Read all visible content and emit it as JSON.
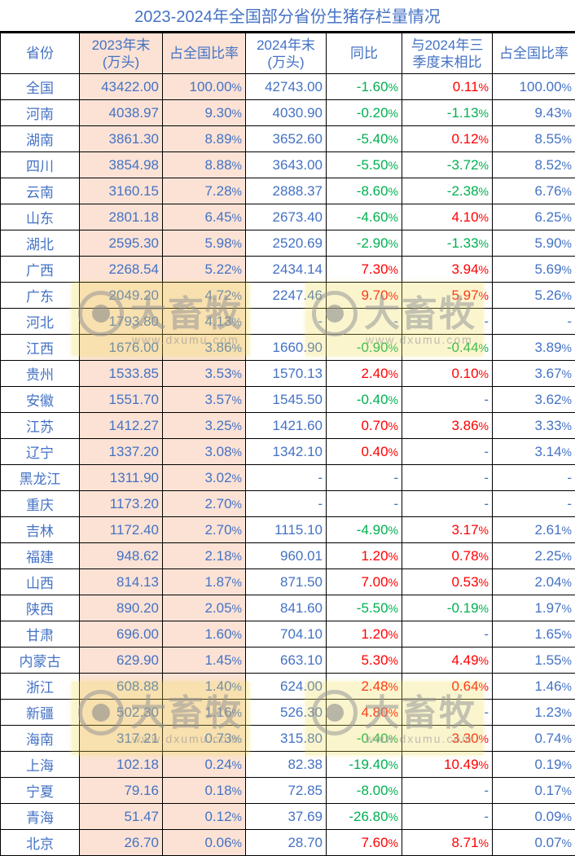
{
  "title": "2023-2024年全国部分省份生猪存栏量情况",
  "headers": {
    "province": "省份",
    "end2023": "2023年末(万头)",
    "share2023": "占全国比率",
    "end2024": "2024年末(万头)",
    "yoy": "同比",
    "vs_q3_2024": "与2024年三季度末相比",
    "share2024": "占全国比率"
  },
  "rows": [
    {
      "province": "全国",
      "end2023": "43422.00",
      "share2023": "100.00%",
      "end2024": "42743.00",
      "yoy": "-1.60%",
      "vs_q3": "0.11%",
      "share2024": "100.00%"
    },
    {
      "province": "河南",
      "end2023": "4038.97",
      "share2023": "9.30%",
      "end2024": "4030.90",
      "yoy": "-0.20%",
      "vs_q3": "-1.13%",
      "share2024": "9.43%"
    },
    {
      "province": "湖南",
      "end2023": "3861.30",
      "share2023": "8.89%",
      "end2024": "3652.60",
      "yoy": "-5.40%",
      "vs_q3": "0.12%",
      "share2024": "8.55%"
    },
    {
      "province": "四川",
      "end2023": "3854.98",
      "share2023": "8.88%",
      "end2024": "3643.00",
      "yoy": "-5.50%",
      "vs_q3": "-3.72%",
      "share2024": "8.52%"
    },
    {
      "province": "云南",
      "end2023": "3160.15",
      "share2023": "7.28%",
      "end2024": "2888.37",
      "yoy": "-8.60%",
      "vs_q3": "-2.38%",
      "share2024": "6.76%"
    },
    {
      "province": "山东",
      "end2023": "2801.18",
      "share2023": "6.45%",
      "end2024": "2673.40",
      "yoy": "-4.60%",
      "vs_q3": "4.10%",
      "share2024": "6.25%"
    },
    {
      "province": "湖北",
      "end2023": "2595.30",
      "share2023": "5.98%",
      "end2024": "2520.69",
      "yoy": "-2.90%",
      "vs_q3": "-1.33%",
      "share2024": "5.90%"
    },
    {
      "province": "广西",
      "end2023": "2268.54",
      "share2023": "5.22%",
      "end2024": "2434.14",
      "yoy": "7.30%",
      "vs_q3": "3.94%",
      "share2024": "5.69%"
    },
    {
      "province": "广东",
      "end2023": "2049.20",
      "share2023": "4.72%",
      "end2024": "2247.46",
      "yoy": "9.70%",
      "vs_q3": "5.97%",
      "share2024": "5.26%"
    },
    {
      "province": "河北",
      "end2023": "1793.80",
      "share2023": "4.13%",
      "end2024": "-",
      "yoy": "-",
      "vs_q3": "-",
      "share2024": "-"
    },
    {
      "province": "江西",
      "end2023": "1676.00",
      "share2023": "3.86%",
      "end2024": "1660.90",
      "yoy": "-0.90%",
      "vs_q3": "-0.44%",
      "share2024": "3.89%"
    },
    {
      "province": "贵州",
      "end2023": "1533.85",
      "share2023": "3.53%",
      "end2024": "1570.13",
      "yoy": "2.40%",
      "vs_q3": "0.10%",
      "share2024": "3.67%"
    },
    {
      "province": "安徽",
      "end2023": "1551.70",
      "share2023": "3.57%",
      "end2024": "1545.50",
      "yoy": "-0.40%",
      "vs_q3": "-",
      "share2024": "3.62%"
    },
    {
      "province": "江苏",
      "end2023": "1412.27",
      "share2023": "3.25%",
      "end2024": "1421.60",
      "yoy": "0.70%",
      "vs_q3": "3.86%",
      "share2024": "3.33%"
    },
    {
      "province": "辽宁",
      "end2023": "1337.20",
      "share2023": "3.08%",
      "end2024": "1342.10",
      "yoy": "0.40%",
      "vs_q3": "-",
      "share2024": "3.14%"
    },
    {
      "province": "黑龙江",
      "end2023": "1311.90",
      "share2023": "3.02%",
      "end2024": "-",
      "yoy": "-",
      "vs_q3": "-",
      "share2024": "-"
    },
    {
      "province": "重庆",
      "end2023": "1173.20",
      "share2023": "2.70%",
      "end2024": "-",
      "yoy": "-",
      "vs_q3": "-",
      "share2024": "-"
    },
    {
      "province": "吉林",
      "end2023": "1172.40",
      "share2023": "2.70%",
      "end2024": "1115.10",
      "yoy": "-4.90%",
      "vs_q3": "3.17%",
      "share2024": "2.61%"
    },
    {
      "province": "福建",
      "end2023": "948.62",
      "share2023": "2.18%",
      "end2024": "960.01",
      "yoy": "1.20%",
      "vs_q3": "0.78%",
      "share2024": "2.25%"
    },
    {
      "province": "山西",
      "end2023": "814.13",
      "share2023": "1.87%",
      "end2024": "871.50",
      "yoy": "7.00%",
      "vs_q3": "0.53%",
      "share2024": "2.04%"
    },
    {
      "province": "陕西",
      "end2023": "890.20",
      "share2023": "2.05%",
      "end2024": "841.60",
      "yoy": "-5.50%",
      "vs_q3": "-0.19%",
      "share2024": "1.97%"
    },
    {
      "province": "甘肃",
      "end2023": "696.00",
      "share2023": "1.60%",
      "end2024": "704.10",
      "yoy": "1.20%",
      "vs_q3": "-",
      "share2024": "1.65%"
    },
    {
      "province": "内蒙古",
      "end2023": "629.90",
      "share2023": "1.45%",
      "end2024": "663.10",
      "yoy": "5.30%",
      "vs_q3": "4.49%",
      "share2024": "1.55%"
    },
    {
      "province": "浙江",
      "end2023": "608.88",
      "share2023": "1.40%",
      "end2024": "624.00",
      "yoy": "2.48%",
      "vs_q3": "0.64%",
      "share2024": "1.46%"
    },
    {
      "province": "新疆",
      "end2023": "502.30",
      "share2023": "1.16%",
      "end2024": "526.30",
      "yoy": "4.80%",
      "vs_q3": "-",
      "share2024": "1.23%"
    },
    {
      "province": "海南",
      "end2023": "317.21",
      "share2023": "0.73%",
      "end2024": "315.80",
      "yoy": "-0.40%",
      "vs_q3": "3.30%",
      "share2024": "0.74%"
    },
    {
      "province": "上海",
      "end2023": "102.18",
      "share2023": "0.24%",
      "end2024": "82.38",
      "yoy": "-19.40%",
      "vs_q3": "10.49%",
      "share2024": "0.19%"
    },
    {
      "province": "宁夏",
      "end2023": "79.16",
      "share2023": "0.18%",
      "end2024": "72.85",
      "yoy": "-8.00%",
      "vs_q3": "-",
      "share2024": "0.17%"
    },
    {
      "province": "青海",
      "end2023": "51.47",
      "share2023": "0.12%",
      "end2024": "37.69",
      "yoy": "-26.80%",
      "vs_q3": "-",
      "share2024": "0.09%"
    },
    {
      "province": "北京",
      "end2023": "26.70",
      "share2023": "0.06%",
      "end2024": "28.70",
      "yoy": "7.60%",
      "vs_q3": "8.71%",
      "share2024": "0.07%"
    }
  ],
  "colors": {
    "text_blue": "#4472C4",
    "positive_red": "#FF0000",
    "negative_green": "#00B050",
    "highlight_column_bg": "#FBE2D5"
  },
  "watermark": {
    "brand": "大畜牧",
    "url": "www.dxumu.com",
    "icon": "camera-lens-logo-icon"
  }
}
